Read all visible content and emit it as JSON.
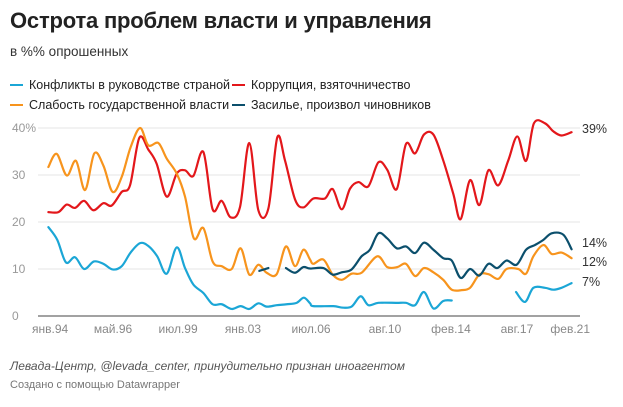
{
  "chart_data": {
    "type": "line",
    "title": "Острота проблем власти и управления",
    "subtitle": "в %% опрошенных",
    "xlabel": "",
    "ylabel": "",
    "xlim": [
      1994.0,
      2021.1
    ],
    "ylim": [
      0,
      40
    ],
    "yticks": [
      {
        "v": 0,
        "label": "0"
      },
      {
        "v": 10,
        "label": "10"
      },
      {
        "v": 20,
        "label": "20"
      },
      {
        "v": 30,
        "label": "30"
      },
      {
        "v": 40,
        "label": "40%"
      }
    ],
    "xticks": [
      {
        "x": 1994.0,
        "label": "янв.94"
      },
      {
        "x": 1997.37,
        "label": "май.96"
      },
      {
        "x": 2000.74,
        "label": "июл.99"
      },
      {
        "x": 2004.1,
        "label": "янв.03"
      },
      {
        "x": 2007.63,
        "label": "июл.06"
      },
      {
        "x": 2011.46,
        "label": "авг.10"
      },
      {
        "x": 2014.88,
        "label": "фев.14"
      },
      {
        "x": 2018.3,
        "label": "авг.17"
      },
      {
        "x": 2021.1,
        "label": "фев.21"
      }
    ],
    "grid": true,
    "legend_position": "top-left",
    "series": [
      {
        "name": "Конфликты в руководстве страной",
        "color": "#1ba6d6",
        "end_label": "7%",
        "segments": [
          [
            [
              1994.02,
              18.9
            ],
            [
              1994.48,
              16.2
            ],
            [
              1994.93,
              11.4
            ],
            [
              1995.4,
              12.5
            ],
            [
              1995.87,
              10
            ],
            [
              1996.38,
              11.6
            ],
            [
              1996.87,
              11.1
            ],
            [
              1997.35,
              9.9
            ],
            [
              1997.82,
              10.6
            ],
            [
              1998.28,
              13.5
            ],
            [
              1998.77,
              15.5
            ],
            [
              1999.2,
              14.9
            ],
            [
              1999.66,
              12.7
            ],
            [
              2000.15,
              9
            ],
            [
              2000.67,
              14.6
            ],
            [
              2001.1,
              10.2
            ],
            [
              2001.53,
              6.7
            ],
            [
              2002.05,
              4.9
            ],
            [
              2002.53,
              2.5
            ],
            [
              2003.0,
              2.5
            ],
            [
              2003.52,
              1.5
            ],
            [
              2003.98,
              2.1
            ],
            [
              2004.43,
              1.5
            ],
            [
              2004.9,
              2.7
            ],
            [
              2005.33,
              2
            ],
            [
              2005.85,
              2.3
            ],
            [
              2006.37,
              2.5
            ],
            [
              2006.88,
              2.8
            ],
            [
              2007.26,
              3.9
            ],
            [
              2007.58,
              2.7
            ],
            [
              2007.75,
              2.1
            ],
            [
              2008.79,
              2.1
            ],
            [
              2009.22,
              1.8
            ],
            [
              2009.73,
              2
            ],
            [
              2010.2,
              4.2
            ],
            [
              2010.6,
              2.3
            ],
            [
              2011.12,
              2.8
            ],
            [
              2012.07,
              2.8
            ],
            [
              2012.55,
              2.8
            ],
            [
              2013.02,
              2.3
            ],
            [
              2013.48,
              5.1
            ],
            [
              2013.97,
              1.6
            ],
            [
              2014.48,
              3.2
            ],
            [
              2014.92,
              3.3
            ]
          ],
          [
            [
              2018.25,
              5.1
            ],
            [
              2018.72,
              3
            ],
            [
              2019.15,
              6
            ],
            [
              2019.75,
              6
            ],
            [
              2020.18,
              5.6
            ],
            [
              2020.61,
              6
            ],
            [
              2021.13,
              7
            ]
          ]
        ]
      },
      {
        "name": "Коррупция, взяточничество",
        "color": "#e3171b",
        "end_label": "39%",
        "segments": [
          [
            [
              1994.02,
              22.1
            ],
            [
              1994.54,
              22.1
            ],
            [
              1994.97,
              23.7
            ],
            [
              1995.4,
              23
            ],
            [
              1995.87,
              24.5
            ],
            [
              1996.35,
              22.5
            ],
            [
              1996.87,
              24
            ],
            [
              1997.3,
              23.5
            ],
            [
              1997.82,
              26.4
            ],
            [
              1998.25,
              27.8
            ],
            [
              1998.73,
              37.9
            ],
            [
              1999.2,
              35.4
            ],
            [
              1999.63,
              32.4
            ],
            [
              2000.15,
              25.4
            ],
            [
              2000.67,
              30.3
            ],
            [
              2001.1,
              31
            ],
            [
              2001.53,
              29.8
            ],
            [
              2002.05,
              34.9
            ],
            [
              2002.53,
              22.7
            ],
            [
              2003.0,
              24.5
            ],
            [
              2003.46,
              21
            ],
            [
              2003.95,
              23.2
            ],
            [
              2004.43,
              36.8
            ],
            [
              2004.9,
              22.5
            ],
            [
              2005.42,
              22.9
            ],
            [
              2005.88,
              38
            ],
            [
              2006.28,
              33.1
            ],
            [
              2006.8,
              24.8
            ],
            [
              2007.23,
              23.1
            ],
            [
              2007.75,
              25
            ],
            [
              2008.35,
              25
            ],
            [
              2008.75,
              27
            ],
            [
              2009.22,
              22.7
            ],
            [
              2009.65,
              27.1
            ],
            [
              2010.08,
              28.5
            ],
            [
              2010.6,
              27.6
            ],
            [
              2011.12,
              32.7
            ],
            [
              2011.58,
              31.1
            ],
            [
              2012.07,
              27
            ],
            [
              2012.55,
              36.6
            ],
            [
              2013.02,
              34.6
            ],
            [
              2013.48,
              38.6
            ],
            [
              2013.97,
              38.6
            ],
            [
              2014.48,
              33.1
            ],
            [
              2015.0,
              26
            ],
            [
              2015.38,
              20.6
            ],
            [
              2015.87,
              28.9
            ],
            [
              2016.35,
              23.6
            ],
            [
              2016.82,
              31
            ],
            [
              2017.33,
              27.8
            ],
            [
              2017.85,
              33.1
            ],
            [
              2018.32,
              38.2
            ],
            [
              2018.77,
              33
            ],
            [
              2019.18,
              41
            ],
            [
              2019.75,
              41
            ],
            [
              2020.18,
              39.3
            ],
            [
              2020.61,
              38.4
            ],
            [
              2021.13,
              39.1
            ]
          ]
        ]
      },
      {
        "name": "Слабость государственной власти",
        "color": "#f7941d",
        "end_label": "12%",
        "segments": [
          [
            [
              1994.02,
              31.7
            ],
            [
              1994.45,
              34.5
            ],
            [
              1994.97,
              29.9
            ],
            [
              1995.45,
              33
            ],
            [
              1995.92,
              26.8
            ],
            [
              1996.4,
              34.6
            ],
            [
              1996.87,
              32
            ],
            [
              1997.35,
              26.4
            ],
            [
              1997.82,
              29.6
            ],
            [
              1998.28,
              35.9
            ],
            [
              1998.77,
              40
            ],
            [
              1999.2,
              36.3
            ],
            [
              1999.72,
              36.8
            ],
            [
              2000.15,
              33.5
            ],
            [
              2000.67,
              30.3
            ],
            [
              2001.1,
              25.4
            ],
            [
              2001.56,
              16.5
            ],
            [
              2002.05,
              18.7
            ],
            [
              2002.53,
              11.6
            ],
            [
              2003.0,
              10.6
            ],
            [
              2003.52,
              10
            ],
            [
              2003.98,
              14.4
            ],
            [
              2004.43,
              8.8
            ],
            [
              2004.9,
              10.9
            ],
            [
              2005.33,
              9.2
            ],
            [
              2005.85,
              8.9
            ],
            [
              2006.33,
              14.8
            ],
            [
              2006.8,
              10.6
            ],
            [
              2007.23,
              14.1
            ],
            [
              2007.58,
              12
            ],
            [
              2007.75,
              11.1
            ],
            [
              2008.27,
              12
            ],
            [
              2008.75,
              8.8
            ],
            [
              2009.22,
              7.7
            ],
            [
              2009.73,
              9
            ],
            [
              2010.25,
              9.2
            ],
            [
              2011.06,
              12.7
            ],
            [
              2011.58,
              10.4
            ],
            [
              2012.1,
              10.4
            ],
            [
              2012.55,
              11.1
            ],
            [
              2013.02,
              8.5
            ],
            [
              2013.48,
              10.2
            ],
            [
              2013.97,
              9.3
            ],
            [
              2014.48,
              7.7
            ],
            [
              2014.92,
              5.6
            ],
            [
              2015.43,
              5.5
            ],
            [
              2015.87,
              6
            ],
            [
              2016.35,
              8.8
            ],
            [
              2016.82,
              8.9
            ],
            [
              2017.33,
              7.9
            ],
            [
              2017.76,
              10
            ],
            [
              2018.37,
              10
            ],
            [
              2018.77,
              9
            ],
            [
              2019.15,
              12.7
            ],
            [
              2019.67,
              15.1
            ],
            [
              2020.1,
              13.2
            ],
            [
              2020.61,
              13.5
            ],
            [
              2021.13,
              12.3
            ]
          ]
        ]
      },
      {
        "name": "Засилье, произвол чиновников",
        "color": "#0b4f6c",
        "end_label": "14%",
        "segments": [
          [
            [
              2004.95,
              9.6
            ],
            [
              2005.42,
              10.2
            ]
          ],
          [
            [
              2006.33,
              10.2
            ],
            [
              2006.8,
              9.2
            ],
            [
              2007.23,
              10.4
            ],
            [
              2007.58,
              10.1
            ],
            [
              2008.27,
              10.2
            ],
            [
              2008.75,
              8.8
            ],
            [
              2009.22,
              9.3
            ],
            [
              2009.73,
              9.9
            ],
            [
              2010.25,
              12.7
            ],
            [
              2010.68,
              14.1
            ],
            [
              2011.12,
              17.6
            ],
            [
              2011.58,
              16.5
            ],
            [
              2012.07,
              14.4
            ],
            [
              2012.55,
              14.8
            ],
            [
              2013.02,
              13.4
            ],
            [
              2013.48,
              15.6
            ],
            [
              2013.97,
              14.1
            ],
            [
              2014.48,
              12.3
            ],
            [
              2014.92,
              11.8
            ],
            [
              2015.38,
              8.1
            ],
            [
              2015.87,
              10
            ],
            [
              2016.35,
              8.6
            ],
            [
              2016.82,
              11.1
            ],
            [
              2017.28,
              10.2
            ],
            [
              2017.76,
              11.8
            ],
            [
              2018.28,
              10.9
            ],
            [
              2018.77,
              14.1
            ],
            [
              2019.23,
              15.1
            ],
            [
              2019.67,
              16.2
            ],
            [
              2020.1,
              17.6
            ],
            [
              2020.7,
              17.3
            ],
            [
              2021.13,
              14.2
            ]
          ]
        ]
      }
    ]
  },
  "footer": {
    "source": "Левада-Центр, @levada_center, принудительно признан иноагентом",
    "credit": "Создано с помощью Datawrapper"
  }
}
